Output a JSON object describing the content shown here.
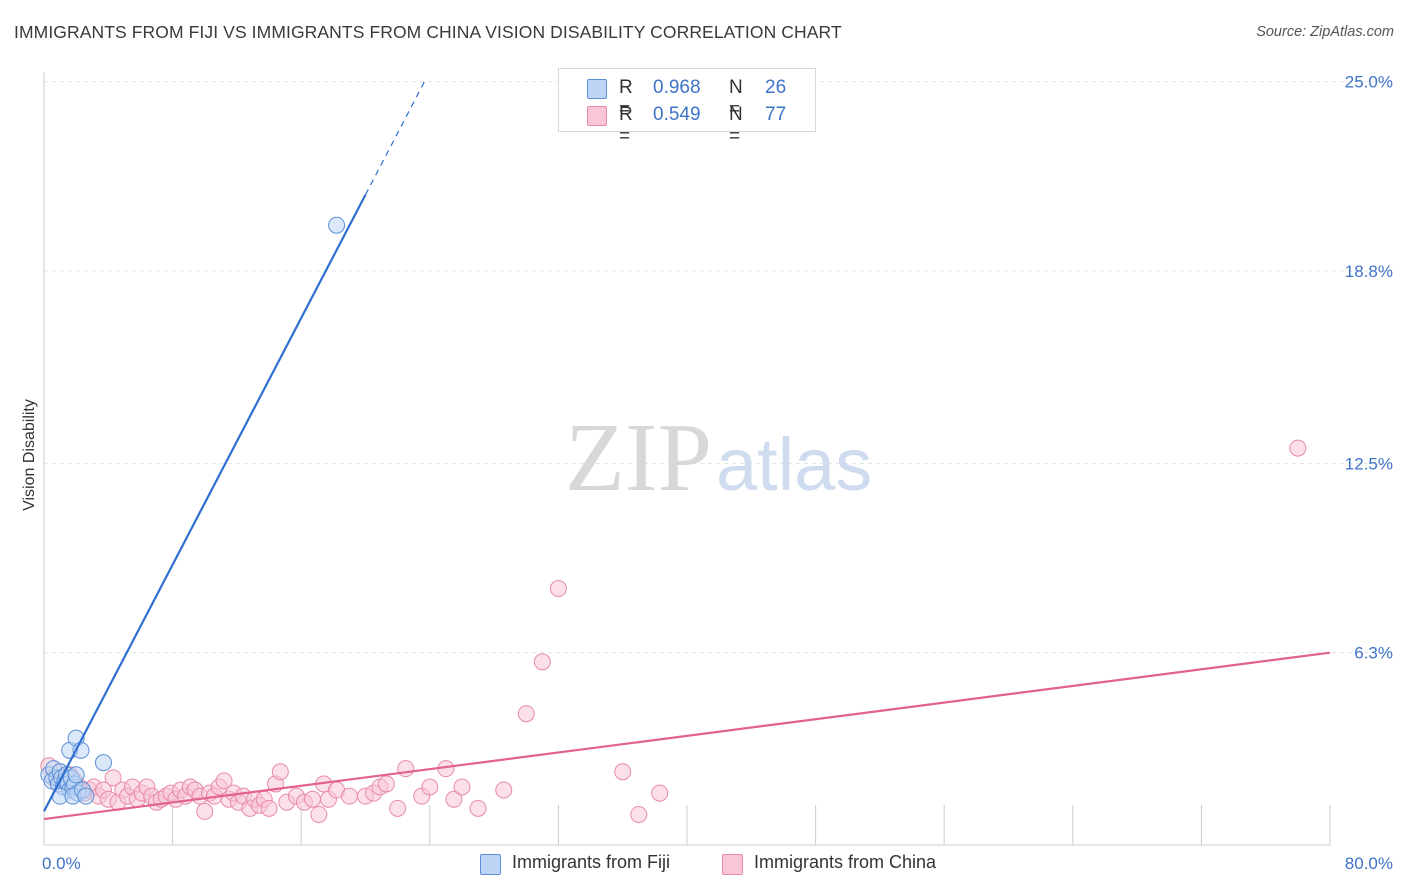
{
  "title": "IMMIGRANTS FROM FIJI VS IMMIGRANTS FROM CHINA VISION DISABILITY CORRELATION CHART",
  "source": "Source: ZipAtlas.com",
  "watermark": {
    "zip": "ZIP",
    "atlas": "atlas"
  },
  "colors": {
    "fiji_fill": "#bcd5f5",
    "fiji_stroke": "#5d8fd6",
    "fiji_line": "#2f6fd0",
    "china_fill": "#f8c6d5",
    "china_stroke": "#e88aa8",
    "china_line": "#e2628d",
    "tick_label": "#3e73c8",
    "grid": "#e3e3e3"
  },
  "legend": {
    "rows": [
      {
        "r_label": "R =",
        "r_value": "0.968",
        "n_label": "N =",
        "n_value": "26"
      },
      {
        "r_label": "R =",
        "r_value": "0.549",
        "n_label": "N =",
        "n_value": "77"
      }
    ]
  },
  "bottom_legend": [
    {
      "label": "Immigrants from Fiji"
    },
    {
      "label": "Immigrants from China"
    }
  ],
  "chart_data": {
    "type": "scatter",
    "title": "IMMIGRANTS FROM FIJI VS IMMIGRANTS FROM CHINA VISION DISABILITY CORRELATION CHART",
    "xlabel": "",
    "ylabel": "Vision Disability",
    "xlim": [
      0,
      80
    ],
    "ylim": [
      0,
      25.5
    ],
    "x_tick_labels": [
      "0.0%",
      "80.0%"
    ],
    "y_ticks": [
      6.3,
      12.5,
      18.8,
      25.0
    ],
    "y_tick_labels": [
      "6.3%",
      "12.5%",
      "18.8%",
      "25.0%"
    ],
    "grid": true,
    "series": [
      {
        "name": "Immigrants from Fiji",
        "r": 0.968,
        "n": 26,
        "trend": {
          "x0": 0,
          "y0": 1.1,
          "x1": 20.0,
          "y1": 21.3,
          "dash_to_x": 23.7
        },
        "points": [
          [
            0.3,
            2.3
          ],
          [
            0.5,
            2.1
          ],
          [
            0.6,
            2.5
          ],
          [
            0.8,
            2.2
          ],
          [
            0.9,
            2.0
          ],
          [
            1.0,
            2.4
          ],
          [
            1.1,
            2.2
          ],
          [
            1.2,
            1.9
          ],
          [
            1.3,
            2.1
          ],
          [
            1.4,
            2.3
          ],
          [
            1.5,
            2.0
          ],
          [
            1.6,
            1.8
          ],
          [
            1.7,
            2.2
          ],
          [
            1.8,
            1.9
          ],
          [
            1.9,
            2.0
          ],
          [
            2.0,
            2.3
          ],
          [
            2.1,
            1.7
          ],
          [
            1.0,
            1.6
          ],
          [
            1.8,
            1.6
          ],
          [
            2.4,
            1.8
          ],
          [
            2.6,
            1.6
          ],
          [
            1.6,
            3.1
          ],
          [
            2.0,
            3.5
          ],
          [
            2.3,
            3.1
          ],
          [
            3.7,
            2.7
          ],
          [
            18.2,
            20.3
          ]
        ]
      },
      {
        "name": "Immigrants from China",
        "r": 0.549,
        "n": 77,
        "trend": {
          "x0": 0,
          "y0": 0.85,
          "x1": 80,
          "y1": 6.3
        },
        "points": [
          [
            0.3,
            2.6
          ],
          [
            0.6,
            2.2
          ],
          [
            1.0,
            2.4
          ],
          [
            1.3,
            2.0
          ],
          [
            1.6,
            2.3
          ],
          [
            1.9,
            2.1
          ],
          [
            2.2,
            1.9
          ],
          [
            2.5,
            1.7
          ],
          [
            2.8,
            1.8
          ],
          [
            3.1,
            1.9
          ],
          [
            3.4,
            1.6
          ],
          [
            3.7,
            1.8
          ],
          [
            4.0,
            1.5
          ],
          [
            4.3,
            2.2
          ],
          [
            4.6,
            1.4
          ],
          [
            4.9,
            1.8
          ],
          [
            5.2,
            1.6
          ],
          [
            5.5,
            1.9
          ],
          [
            5.8,
            1.5
          ],
          [
            6.1,
            1.7
          ],
          [
            6.4,
            1.9
          ],
          [
            6.7,
            1.6
          ],
          [
            7.0,
            1.4
          ],
          [
            7.3,
            1.5
          ],
          [
            7.6,
            1.6
          ],
          [
            7.9,
            1.7
          ],
          [
            8.2,
            1.5
          ],
          [
            8.5,
            1.8
          ],
          [
            8.8,
            1.6
          ],
          [
            9.1,
            1.9
          ],
          [
            9.4,
            1.8
          ],
          [
            9.7,
            1.6
          ],
          [
            10.0,
            1.1
          ],
          [
            10.3,
            1.7
          ],
          [
            10.6,
            1.6
          ],
          [
            10.9,
            1.9
          ],
          [
            11.2,
            2.1
          ],
          [
            11.5,
            1.5
          ],
          [
            11.8,
            1.7
          ],
          [
            12.1,
            1.4
          ],
          [
            12.4,
            1.6
          ],
          [
            12.8,
            1.2
          ],
          [
            13.1,
            1.5
          ],
          [
            13.4,
            1.3
          ],
          [
            13.7,
            1.5
          ],
          [
            14.0,
            1.2
          ],
          [
            14.4,
            2.0
          ],
          [
            14.7,
            2.4
          ],
          [
            15.1,
            1.4
          ],
          [
            15.7,
            1.6
          ],
          [
            16.2,
            1.4
          ],
          [
            16.7,
            1.5
          ],
          [
            17.1,
            1.0
          ],
          [
            17.4,
            2.0
          ],
          [
            17.7,
            1.5
          ],
          [
            18.2,
            1.8
          ],
          [
            19.0,
            1.6
          ],
          [
            20.0,
            1.6
          ],
          [
            20.5,
            1.7
          ],
          [
            20.9,
            1.9
          ],
          [
            21.3,
            2.0
          ],
          [
            22.0,
            1.2
          ],
          [
            22.5,
            2.5
          ],
          [
            23.5,
            1.6
          ],
          [
            24.0,
            1.9
          ],
          [
            25.0,
            2.5
          ],
          [
            25.5,
            1.5
          ],
          [
            26.0,
            1.9
          ],
          [
            27.0,
            1.2
          ],
          [
            28.6,
            1.8
          ],
          [
            30.0,
            4.3
          ],
          [
            31.0,
            6.0
          ],
          [
            32.0,
            8.4
          ],
          [
            36.0,
            2.4
          ],
          [
            37.0,
            1.0
          ],
          [
            38.3,
            1.7
          ],
          [
            78.0,
            13.0
          ]
        ]
      }
    ]
  }
}
